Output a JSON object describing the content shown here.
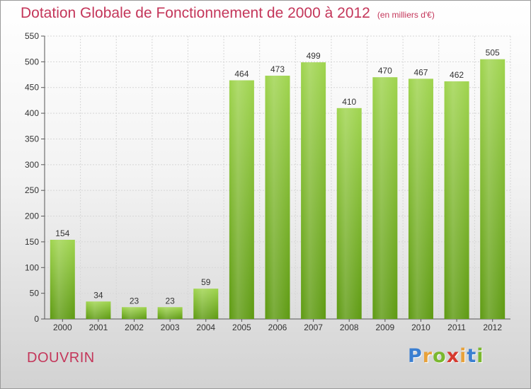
{
  "title": "Dotation Globale de Fonctionnement de 2000 à 2012",
  "unit_label": "(en milliers d'€)",
  "place_name": "DOUVRIN",
  "logo": {
    "text": "Proxiti",
    "letter_colors": [
      "#3b7fd1",
      "#e8a23a",
      "#7ab82e",
      "#d63a2f",
      "#e8a23a",
      "#3b7fd1",
      "#7ab82e"
    ]
  },
  "colors": {
    "title": "#c4365a",
    "bar_light": "#9fd44e",
    "bar_dark": "#5e9a12"
  },
  "chart_data": {
    "type": "bar",
    "categories": [
      "2000",
      "2001",
      "2002",
      "2003",
      "2004",
      "2005",
      "2006",
      "2007",
      "2008",
      "2009",
      "2010",
      "2011",
      "2012"
    ],
    "values": [
      154,
      34,
      23,
      23,
      59,
      464,
      473,
      499,
      410,
      470,
      467,
      462,
      505
    ],
    "title": "Dotation Globale de Fonctionnement de 2000 à 2012",
    "xlabel": "",
    "ylabel": "",
    "ylim": [
      0,
      550
    ],
    "yticks": [
      0,
      50,
      100,
      150,
      200,
      250,
      300,
      350,
      400,
      450,
      500,
      550
    ],
    "grid": true,
    "data_labels": true
  }
}
